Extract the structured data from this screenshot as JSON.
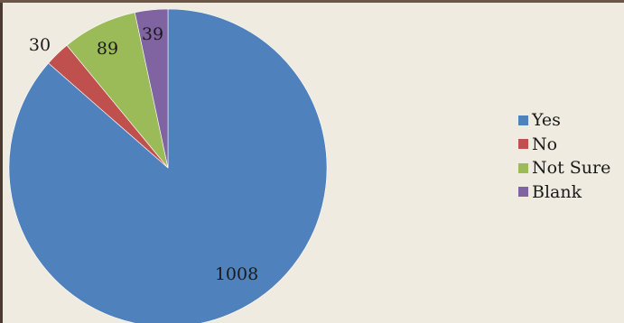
{
  "chart_data": {
    "type": "pie",
    "categories": [
      "Yes",
      "No",
      "Not Sure",
      "Blank"
    ],
    "values": [
      1008,
      30,
      89,
      39
    ],
    "colors": [
      "#4f81bd",
      "#c0504d",
      "#9bbb59",
      "#8064a2"
    ],
    "data_labels": [
      "1008",
      "30",
      "89",
      "39"
    ],
    "legend_position": "right",
    "start_angle": "top",
    "direction": "clockwise"
  }
}
